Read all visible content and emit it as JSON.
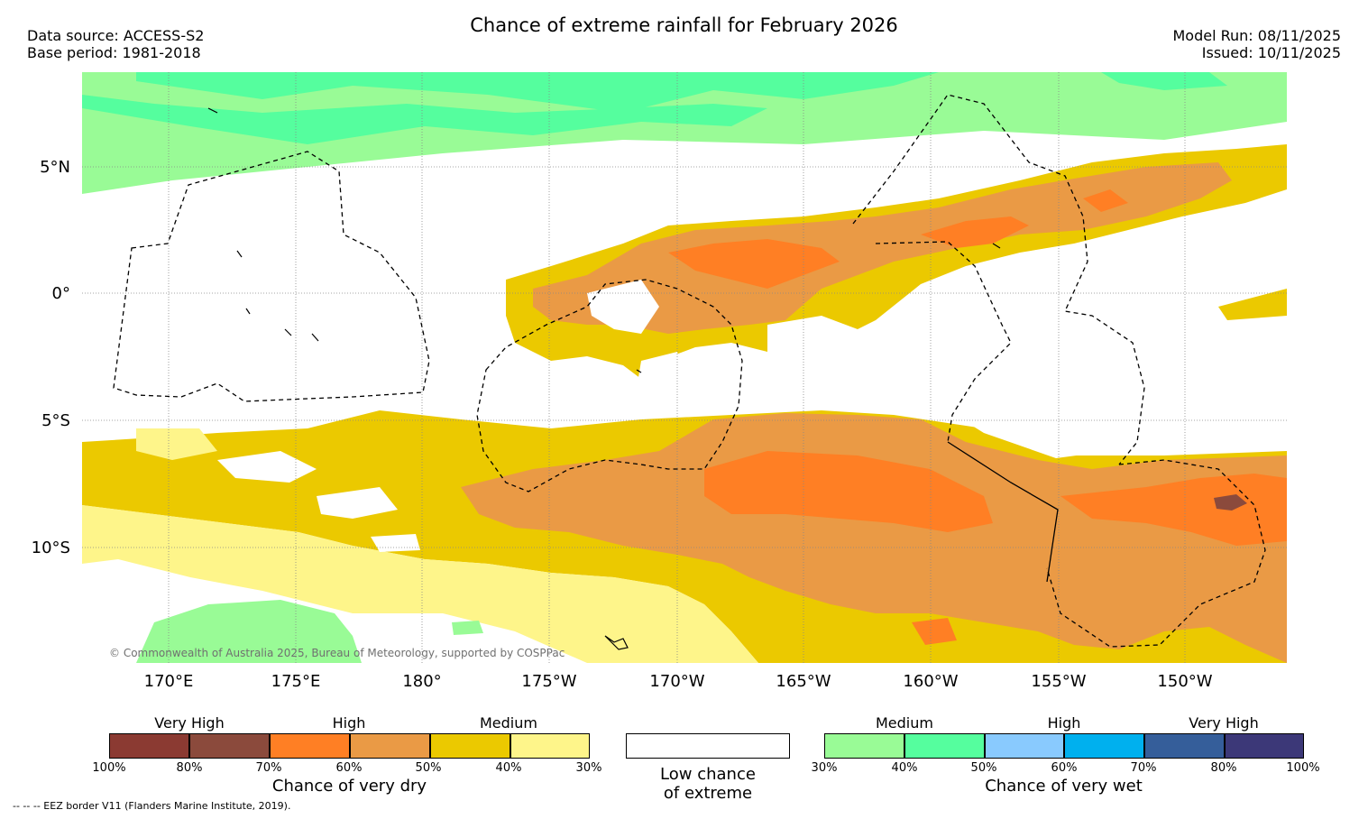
{
  "header": {
    "title": "Chance of extreme rainfall for February 2026",
    "data_source": "Data source: ACCESS-S2",
    "base_period": "Base period: 1981-2018",
    "model_run": "Model Run: 08/11/2025",
    "issued": "Issued: 10/11/2025"
  },
  "map": {
    "lat_labels": [
      "5°N",
      "0°",
      "5°S",
      "10°S"
    ],
    "lon_labels": [
      "170°E",
      "175°E",
      "180°",
      "175°W",
      "170°W",
      "165°W",
      "160°W",
      "155°W",
      "150°W"
    ],
    "credit": "© Commonwealth of Australia 2025, Bureau of Meteorology, supported by COSPPac"
  },
  "colors": {
    "dry_100_90": "#8b3a32",
    "dry_90_80": "#8b4a3c",
    "dry_70_60": "#ff7f24",
    "dry_60_50": "#ea9a45",
    "dry_50_40": "#ebc900",
    "dry_40_30": "#fef58a",
    "wet_30_40": "#99fb96",
    "wet_40_50": "#55fe9e",
    "wet_50_60": "#89cafe",
    "wet_60_70": "#00b0ee",
    "wet_70_80": "#355e9a",
    "wet_80_100": "#3c3878"
  },
  "legend": {
    "dry": {
      "categories": [
        "Very High",
        "High",
        "Medium"
      ],
      "ticks": [
        "100%",
        "80%",
        "70%",
        "60%",
        "50%",
        "40%",
        "30%"
      ],
      "title": "Chance of very dry"
    },
    "neutral": {
      "line1": "Low chance",
      "line2": "of extreme"
    },
    "wet": {
      "categories": [
        "Medium",
        "High",
        "Very High"
      ],
      "ticks": [
        "30%",
        "40%",
        "50%",
        "60%",
        "70%",
        "80%",
        "100%"
      ],
      "title": "Chance of very wet"
    }
  },
  "footnote": "--  --  -- EEZ border V11 (Flanders Marine Institute, 2019)."
}
